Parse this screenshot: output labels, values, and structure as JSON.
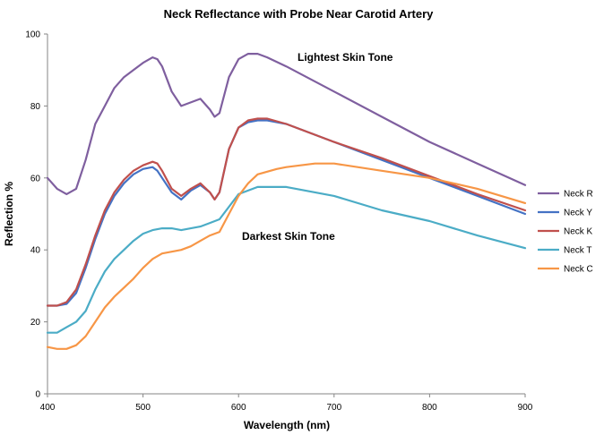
{
  "chart_data": {
    "type": "line",
    "title": "Neck Reflectance  with Probe Near Carotid Artery",
    "xlabel": "Wavelength (nm)",
    "ylabel": "Reflection %",
    "xlim": [
      400,
      900
    ],
    "ylim": [
      0,
      100
    ],
    "x_ticks": [
      "400",
      "500",
      "600",
      "700",
      "800",
      "900"
    ],
    "y_ticks": [
      "0",
      "20",
      "40",
      "60",
      "80",
      "100"
    ],
    "grid": false,
    "legend_position": "right",
    "annotations": [
      "Lightest Skin Tone",
      "Darkest Skin Tone"
    ],
    "series": [
      {
        "name": "Neck R",
        "color": "#7f5f9f",
        "x": [
          400,
          410,
          420,
          430,
          440,
          450,
          460,
          470,
          480,
          490,
          500,
          510,
          515,
          520,
          530,
          540,
          550,
          560,
          570,
          575,
          580,
          590,
          600,
          610,
          620,
          630,
          650,
          700,
          750,
          800,
          850,
          900
        ],
        "y": [
          60,
          57,
          55.5,
          57,
          65,
          75,
          80,
          85,
          88,
          90,
          92,
          93.5,
          93,
          91,
          84,
          80,
          81,
          82,
          79,
          77,
          78,
          88,
          93,
          94.5,
          94.5,
          93.5,
          91,
          84,
          77,
          70,
          64,
          58
        ]
      },
      {
        "name": "Neck Y",
        "color": "#4472c4",
        "x": [
          400,
          410,
          420,
          430,
          440,
          450,
          460,
          470,
          480,
          490,
          500,
          510,
          515,
          520,
          530,
          540,
          550,
          560,
          570,
          575,
          580,
          590,
          600,
          610,
          620,
          630,
          650,
          700,
          750,
          800,
          850,
          900
        ],
        "y": [
          24.5,
          24.5,
          25,
          28,
          35,
          43,
          50,
          55,
          58.5,
          61,
          62.5,
          63,
          62,
          60,
          56,
          54,
          56.5,
          58,
          56,
          54,
          56,
          68,
          74,
          75.5,
          76,
          76,
          75,
          70,
          65,
          60,
          55,
          50
        ]
      },
      {
        "name": "Neck K",
        "color": "#c0504d",
        "x": [
          400,
          410,
          420,
          430,
          440,
          450,
          460,
          470,
          480,
          490,
          500,
          510,
          515,
          520,
          530,
          540,
          550,
          560,
          570,
          575,
          580,
          590,
          600,
          610,
          620,
          630,
          650,
          700,
          750,
          800,
          850,
          900
        ],
        "y": [
          24.5,
          24.5,
          25.5,
          29,
          36,
          44,
          51,
          56,
          59.5,
          62,
          63.5,
          64.5,
          64,
          62,
          57,
          55,
          57,
          58.5,
          56,
          54,
          56,
          68,
          74,
          76,
          76.5,
          76.5,
          75,
          70,
          65.5,
          60.5,
          55.5,
          51
        ]
      },
      {
        "name": "Neck T",
        "color": "#4bacc6",
        "x": [
          400,
          410,
          420,
          430,
          440,
          450,
          460,
          470,
          480,
          490,
          500,
          510,
          520,
          530,
          540,
          550,
          560,
          570,
          580,
          590,
          600,
          620,
          640,
          650,
          700,
          750,
          800,
          850,
          900
        ],
        "y": [
          17,
          17,
          18.5,
          20,
          23,
          29,
          34,
          37.5,
          40,
          42.5,
          44.5,
          45.5,
          46,
          46,
          45.5,
          46,
          46.5,
          47.5,
          48.5,
          52,
          55.5,
          57.5,
          57.5,
          57.5,
          55,
          51,
          48,
          44,
          40.5
        ]
      },
      {
        "name": "Neck C",
        "color": "#f79646",
        "x": [
          400,
          410,
          420,
          430,
          440,
          450,
          460,
          470,
          480,
          490,
          500,
          510,
          520,
          530,
          540,
          550,
          560,
          570,
          580,
          590,
          600,
          610,
          620,
          640,
          650,
          680,
          700,
          750,
          800,
          850,
          900
        ],
        "y": [
          13,
          12.5,
          12.5,
          13.5,
          16,
          20,
          24,
          27,
          29.5,
          32,
          35,
          37.5,
          39,
          39.5,
          40,
          41,
          42.5,
          44,
          45,
          50,
          55,
          58.5,
          61,
          62.5,
          63,
          64,
          64,
          62,
          60,
          57,
          53
        ]
      }
    ]
  }
}
